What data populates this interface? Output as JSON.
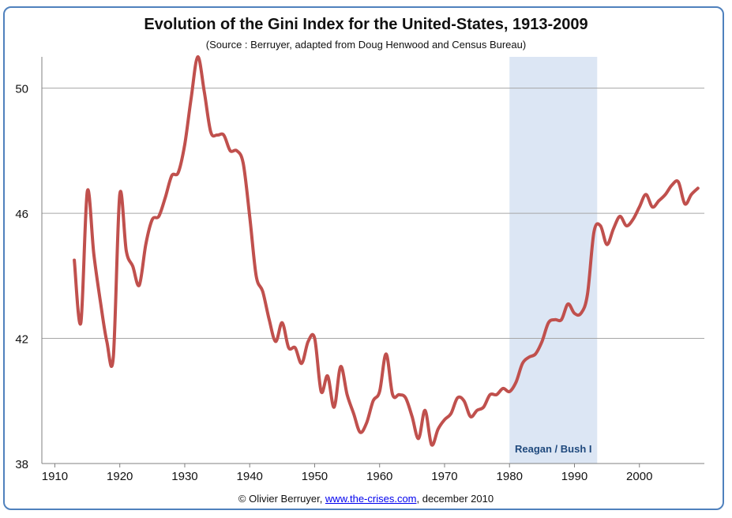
{
  "title": "Evolution of the Gini Index for the United-States, 1913-2009",
  "subtitle": "(Source : Berruyer, adapted from Doug Henwood and Census Bureau)",
  "footer": {
    "prefix": "© Olivier Berruyer, ",
    "link_text": "www.the-crises.com",
    "suffix": ", december 2010"
  },
  "colors": {
    "line": "#c0504d",
    "shade": "#dce6f4",
    "grid": "#a6a6a6",
    "axis": "#808080",
    "shade_label": "#1f497d",
    "border": "#4f81bd"
  },
  "chart_data": {
    "type": "line",
    "title": "Evolution of the Gini Index for the United-States, 1913-2009",
    "xlabel": "",
    "ylabel": "",
    "xlim": [
      1908,
      2010
    ],
    "ylim": [
      38,
      51
    ],
    "grid": true,
    "x_ticks": [
      1910,
      1920,
      1930,
      1940,
      1950,
      1960,
      1970,
      1980,
      1990,
      2000
    ],
    "y_ticks": [
      38,
      42,
      46,
      50
    ],
    "shaded_region": {
      "x_start": 1980,
      "x_end": 1993.5,
      "label": "Reagan / Bush I"
    },
    "series": [
      {
        "name": "Gini Index",
        "x": [
          1913,
          1914,
          1915,
          1916,
          1917,
          1918,
          1919,
          1920,
          1921,
          1922,
          1923,
          1924,
          1925,
          1926,
          1927,
          1928,
          1929,
          1930,
          1931,
          1932,
          1933,
          1934,
          1935,
          1936,
          1937,
          1938,
          1939,
          1940,
          1941,
          1942,
          1943,
          1944,
          1945,
          1946,
          1947,
          1948,
          1949,
          1950,
          1951,
          1952,
          1953,
          1954,
          1955,
          1956,
          1957,
          1958,
          1959,
          1960,
          1961,
          1962,
          1963,
          1964,
          1965,
          1966,
          1967,
          1968,
          1969,
          1970,
          1971,
          1972,
          1973,
          1974,
          1975,
          1976,
          1977,
          1978,
          1979,
          1980,
          1981,
          1982,
          1983,
          1984,
          1985,
          1986,
          1987,
          1988,
          1989,
          1990,
          1991,
          1992,
          1993,
          1994,
          1995,
          1996,
          1997,
          1998,
          1999,
          2000,
          2001,
          2002,
          2003,
          2004,
          2005,
          2006,
          2007,
          2008,
          2009
        ],
        "values": [
          44.5,
          42.5,
          46.7,
          44.7,
          43.2,
          41.9,
          41.4,
          46.6,
          44.8,
          44.3,
          43.7,
          45.0,
          45.8,
          45.9,
          46.5,
          47.2,
          47.3,
          48.2,
          49.7,
          51.0,
          49.9,
          48.6,
          48.5,
          48.5,
          48.0,
          48.0,
          47.6,
          45.9,
          44.0,
          43.5,
          42.6,
          41.9,
          42.5,
          41.7,
          41.7,
          41.2,
          41.9,
          42.0,
          40.3,
          40.8,
          39.8,
          41.1,
          40.2,
          39.6,
          39.0,
          39.3,
          40.0,
          40.3,
          41.5,
          40.2,
          40.2,
          40.1,
          39.5,
          38.8,
          39.7,
          38.6,
          39.1,
          39.4,
          39.6,
          40.1,
          40.0,
          39.5,
          39.7,
          39.8,
          40.2,
          40.2,
          40.4,
          40.3,
          40.6,
          41.2,
          41.4,
          41.5,
          41.9,
          42.5,
          42.6,
          42.6,
          43.1,
          42.8,
          42.8,
          43.4,
          45.4,
          45.6,
          45.0,
          45.5,
          45.9,
          45.6,
          45.8,
          46.2,
          46.6,
          46.2,
          46.4,
          46.6,
          46.9,
          47.0,
          46.3,
          46.6,
          46.8
        ]
      }
    ]
  }
}
